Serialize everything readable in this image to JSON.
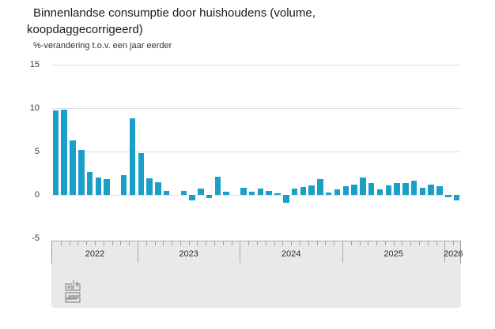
{
  "header": {
    "title_line1": "Binnenlandse consumptie door huishoudens (volume,",
    "title_line2": "koopdaggecorrigeerd)",
    "subtitle": "%-verandering t.o.v. een jaar eerder"
  },
  "chart_data": {
    "type": "bar",
    "title": "Binnenlandse consumptie door huishoudens (volume, koopdaggecorrigeerd)",
    "subtitle": "%-verandering t.o.v. een jaar eerder",
    "ylabel": "%-verandering t.o.v. een jaar eerder",
    "xlabel": "",
    "ylim": [
      -5,
      15
    ],
    "yticks": [
      15,
      10,
      5,
      0,
      -5
    ],
    "grid": true,
    "legend": "none",
    "bar_color": "#1aa0c8",
    "x": [
      "2022-03",
      "2022-04",
      "2022-05",
      "2022-06",
      "2022-07",
      "2022-08",
      "2022-09",
      "2022-10",
      "2022-11",
      "2022-12",
      "2023-01",
      "2023-02",
      "2023-03",
      "2023-04",
      "2023-05",
      "2023-06",
      "2023-07",
      "2023-08",
      "2023-09",
      "2023-10",
      "2023-11",
      "2023-12",
      "2024-01",
      "2024-02",
      "2024-03",
      "2024-04",
      "2024-05",
      "2024-06",
      "2024-07",
      "2024-08",
      "2024-09",
      "2024-10",
      "2024-11",
      "2024-12",
      "2025-01",
      "2025-02",
      "2025-03",
      "2025-04",
      "2025-05",
      "2025-06",
      "2025-07",
      "2025-08",
      "2025-09",
      "2025-10",
      "2025-11",
      "2025-12",
      "2026-01",
      "2026-02"
    ],
    "values": [
      9.7,
      9.8,
      6.3,
      5.2,
      2.6,
      2.0,
      1.8,
      0.0,
      2.3,
      8.8,
      4.8,
      1.9,
      1.5,
      0.5,
      0.0,
      0.5,
      -0.6,
      0.7,
      -0.4,
      2.1,
      0.4,
      0.0,
      0.8,
      0.4,
      0.7,
      0.5,
      0.2,
      -0.9,
      0.7,
      0.9,
      1.1,
      1.8,
      0.3,
      0.6,
      1.0,
      1.2,
      2.0,
      1.4,
      0.6,
      1.1,
      1.4,
      1.4,
      1.6,
      0.8,
      1.2,
      1.0,
      -0.3,
      -0.6
    ],
    "months_total": 48,
    "year_boundary_month_indices": [
      10,
      22,
      34,
      46
    ],
    "year_labels": [
      {
        "label": "2022",
        "center_month": 5
      },
      {
        "label": "2023",
        "center_month": 16
      },
      {
        "label": "2024",
        "center_month": 28
      },
      {
        "label": "2025",
        "center_month": 40
      },
      {
        "label": "2026",
        "center_month": 47
      }
    ]
  },
  "timeline": {
    "years": [
      "2022",
      "2023",
      "2024",
      "2025",
      "2026"
    ]
  },
  "branding": {
    "logo": "cbs-logo"
  }
}
